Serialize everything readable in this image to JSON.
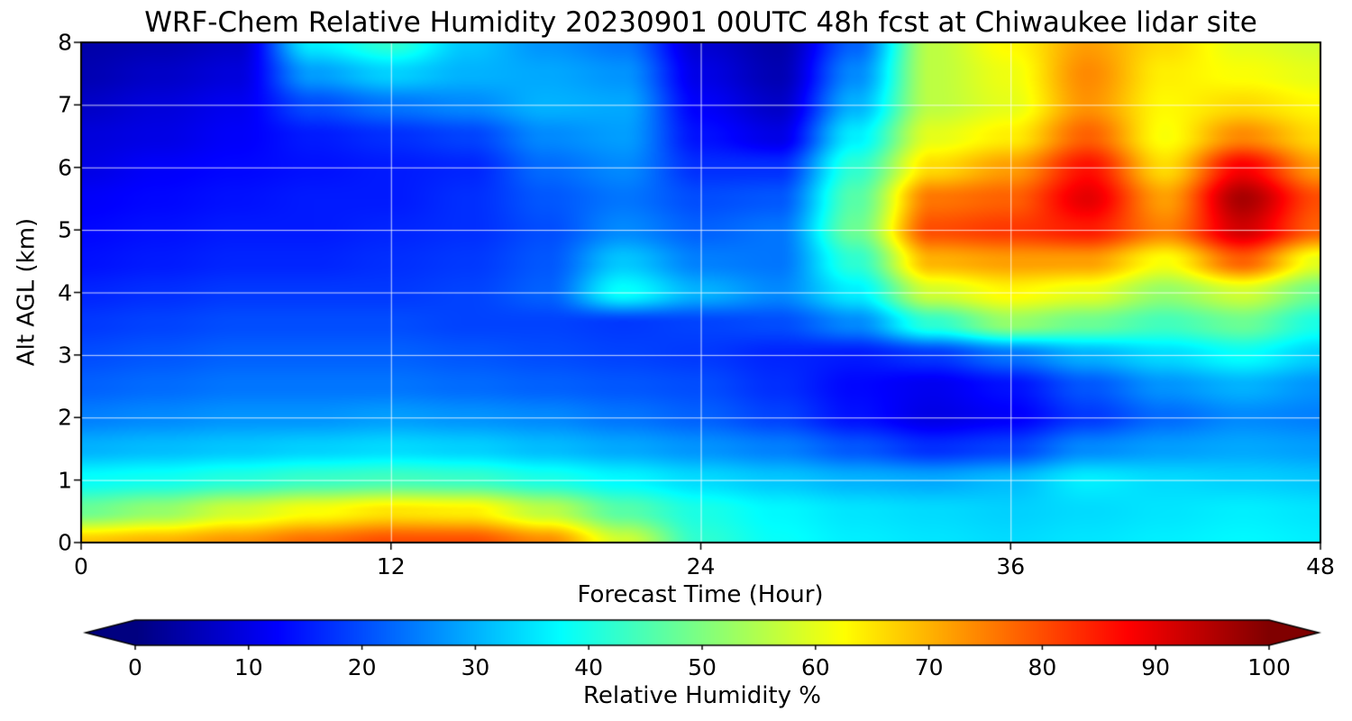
{
  "figure": {
    "background_color": "#ffffff",
    "text_color": "#000000"
  },
  "chart_data": {
    "type": "heatmap",
    "title": "WRF-Chem Relative Humidity 20230901 00UTC 48h fcst at Chiwaukee lidar site",
    "xlabel": "Forecast Time (Hour)",
    "ylabel": "Alt AGL (km)",
    "colorbar_label": "Relative Humidity %",
    "colormap": "jet",
    "grid_on": true,
    "grid_color": "rgba(255,255,255,0.8)",
    "x_range": [
      0,
      48
    ],
    "y_range": [
      0,
      8
    ],
    "x_ticks": [
      0,
      12,
      24,
      36,
      48
    ],
    "y_ticks": [
      0,
      1,
      2,
      3,
      4,
      5,
      6,
      7,
      8
    ],
    "x_gridlines": [
      12,
      24,
      36
    ],
    "y_gridlines": [
      1,
      2,
      3,
      4,
      5,
      6,
      7
    ],
    "colorbar_range": [
      0,
      100
    ],
    "colorbar_ticks": [
      0,
      10,
      20,
      30,
      40,
      50,
      60,
      70,
      80,
      90,
      100
    ],
    "colorbar_extend": "both",
    "grid_x_hours": [
      0,
      3,
      6,
      9,
      12,
      15,
      18,
      21,
      24,
      27,
      30,
      33,
      36,
      39,
      42,
      45,
      48
    ],
    "grid_y_km": [
      0,
      0.5,
      1,
      1.5,
      2,
      2.5,
      3,
      3.5,
      4,
      4.5,
      5,
      5.5,
      6,
      6.5,
      7,
      7.5,
      8
    ],
    "values_percent": [
      [
        68,
        70,
        73,
        77,
        80,
        80,
        74,
        58,
        42,
        38,
        36,
        35,
        34,
        35,
        36,
        37,
        36
      ],
      [
        48,
        52,
        58,
        62,
        65,
        64,
        56,
        46,
        40,
        37,
        35,
        34,
        33,
        34,
        35,
        36,
        35
      ],
      [
        38,
        39,
        41,
        43,
        44,
        43,
        40,
        37,
        34,
        32,
        30,
        29,
        31,
        36,
        34,
        33,
        32
      ],
      [
        30,
        31,
        32,
        33,
        34,
        33,
        31,
        29,
        27,
        25,
        21,
        17,
        19,
        26,
        28,
        29,
        28
      ],
      [
        25,
        26,
        27,
        27,
        28,
        27,
        26,
        24,
        22,
        19,
        14,
        10,
        12,
        18,
        23,
        26,
        25
      ],
      [
        22,
        23,
        24,
        24,
        24,
        23,
        22,
        21,
        20,
        17,
        13,
        11,
        14,
        21,
        27,
        30,
        27
      ],
      [
        20,
        21,
        22,
        22,
        22,
        21,
        20,
        19,
        18,
        16,
        15,
        18,
        24,
        30,
        34,
        38,
        33
      ],
      [
        18,
        19,
        20,
        20,
        20,
        19,
        19,
        18,
        19,
        20,
        26,
        42,
        52,
        48,
        44,
        48,
        40
      ],
      [
        16,
        17,
        18,
        18,
        18,
        19,
        22,
        38,
        30,
        26,
        36,
        58,
        63,
        60,
        52,
        58,
        48
      ],
      [
        14,
        15,
        16,
        16,
        17,
        18,
        21,
        32,
        25,
        24,
        42,
        70,
        72,
        72,
        62,
        78,
        60
      ],
      [
        13,
        14,
        15,
        15,
        16,
        17,
        20,
        26,
        22,
        24,
        48,
        80,
        82,
        85,
        75,
        92,
        78
      ],
      [
        12,
        13,
        14,
        15,
        15,
        17,
        21,
        24,
        20,
        21,
        46,
        76,
        78,
        90,
        72,
        96,
        80
      ],
      [
        10,
        12,
        13,
        14,
        15,
        16,
        23,
        26,
        17,
        17,
        42,
        66,
        72,
        86,
        66,
        88,
        72
      ],
      [
        9,
        10,
        12,
        15,
        17,
        19,
        26,
        28,
        14,
        10,
        36,
        60,
        64,
        78,
        62,
        74,
        66
      ],
      [
        7,
        9,
        11,
        20,
        24,
        26,
        30,
        29,
        12,
        7,
        30,
        56,
        60,
        73,
        63,
        66,
        63
      ],
      [
        5,
        7,
        9,
        28,
        33,
        30,
        29,
        27,
        10,
        5,
        26,
        56,
        61,
        74,
        64,
        62,
        60
      ],
      [
        4,
        5,
        7,
        36,
        42,
        32,
        27,
        24,
        8,
        4,
        22,
        56,
        63,
        72,
        66,
        60,
        58
      ]
    ]
  }
}
